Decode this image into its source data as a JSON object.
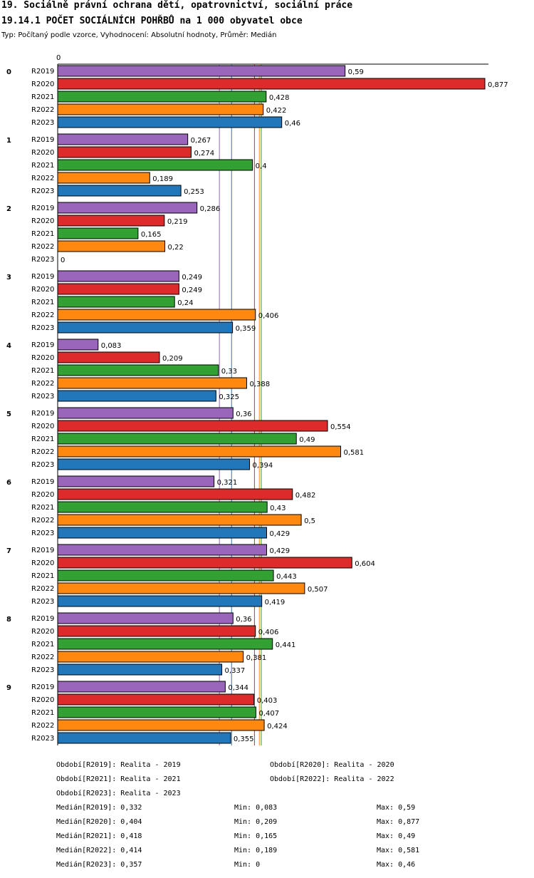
{
  "header": {
    "title_line1": "19. Sociálně právní ochrana dětí, opatrovnictví, sociální práce",
    "title_line2": "19.14.1 POČET SOCIÁLNÍCH POHŘBŮ na 1 000 obyvatel obce",
    "subtitle": "Typ: Počítaný podle vzorce, Vyhodnocení: Absolutní hodnoty, Průměr: Medián"
  },
  "chart_data": {
    "type": "bar",
    "orientation": "horizontal",
    "axis_zero_label": "0",
    "xlim": [
      0,
      0.877
    ],
    "categories": [
      "0",
      "1",
      "2",
      "3",
      "4",
      "5",
      "6",
      "7",
      "8",
      "9"
    ],
    "series": [
      {
        "name": "R2019",
        "color": "#9966bb",
        "values": [
          0.59,
          0.267,
          0.286,
          0.249,
          0.083,
          0.36,
          0.321,
          0.429,
          0.36,
          0.344
        ],
        "labels": [
          "0,59",
          "0,267",
          "0,286",
          "0,249",
          "0,083",
          "0,36",
          "0,321",
          "0,429",
          "0,36",
          "0,344"
        ]
      },
      {
        "name": "R2020",
        "color": "#dd2a2a",
        "values": [
          0.877,
          0.274,
          0.219,
          0.249,
          0.209,
          0.554,
          0.482,
          0.604,
          0.406,
          0.403
        ],
        "labels": [
          "0,877",
          "0,274",
          "0,219",
          "0,249",
          "0,209",
          "0,554",
          "0,482",
          "0,604",
          "0,406",
          "0,403"
        ]
      },
      {
        "name": "R2021",
        "color": "#33a033",
        "values": [
          0.428,
          0.4,
          0.165,
          0.24,
          0.33,
          0.49,
          0.43,
          0.443,
          0.441,
          0.407
        ],
        "labels": [
          "0,428",
          "0,4",
          "0,165",
          "0,24",
          "0,33",
          "0,49",
          "0,43",
          "0,443",
          "0,441",
          "0,407"
        ]
      },
      {
        "name": "R2022",
        "color": "#ff8811",
        "values": [
          0.422,
          0.189,
          0.22,
          0.406,
          0.388,
          0.581,
          0.5,
          0.507,
          0.381,
          0.424
        ],
        "labels": [
          "0,422",
          "0,189",
          "0,22",
          "0,406",
          "0,388",
          "0,581",
          "0,5",
          "0,507",
          "0,381",
          "0,424"
        ]
      },
      {
        "name": "R2023",
        "color": "#2277bb",
        "values": [
          0.46,
          0.253,
          0.0,
          0.359,
          0.325,
          0.394,
          0.429,
          0.419,
          0.337,
          0.355
        ],
        "labels": [
          "0,46",
          "0,253",
          "0",
          "0,359",
          "0,325",
          "0,394",
          "0,429",
          "0,419",
          "0,337",
          "0,355"
        ]
      }
    ],
    "median_lines": [
      {
        "series": "R2019",
        "value": 0.332,
        "color": "#9966bb"
      },
      {
        "series": "R2020",
        "value": 0.404,
        "color": "#dd2a2a"
      },
      {
        "series": "R2021",
        "value": 0.418,
        "color": "#33a033"
      },
      {
        "series": "R2022",
        "value": 0.414,
        "color": "#ff8811"
      },
      {
        "series": "R2023",
        "value": 0.357,
        "color": "#2277bb"
      }
    ]
  },
  "legend": {
    "periods": [
      "Období[R2019]: Realita - 2019",
      "Období[R2020]: Realita - 2020",
      "Období[R2021]: Realita - 2021",
      "Období[R2022]: Realita - 2022",
      "Období[R2023]: Realita - 2023"
    ],
    "stats": [
      {
        "median": "Medián[R2019]: 0,332",
        "min": "Min: 0,083",
        "max": "Max: 0,59"
      },
      {
        "median": "Medián[R2020]: 0,404",
        "min": "Min: 0,209",
        "max": "Max: 0,877"
      },
      {
        "median": "Medián[R2021]: 0,418",
        "min": "Min: 0,165",
        "max": "Max: 0,49"
      },
      {
        "median": "Medián[R2022]: 0,414",
        "min": "Min: 0,189",
        "max": "Max: 0,581"
      },
      {
        "median": "Medián[R2023]: 0,357",
        "min": "Min: 0",
        "max": "Max: 0,46"
      }
    ]
  }
}
